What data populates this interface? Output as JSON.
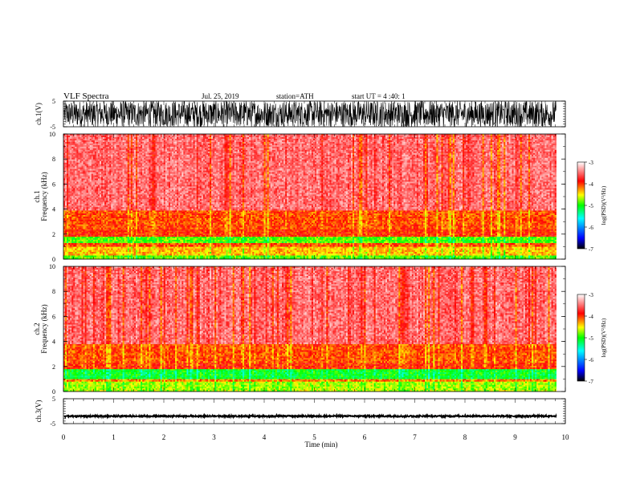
{
  "header": {
    "title": "VLF  Spectra",
    "date": "Jul.  25, 2019",
    "station": "station=ATH",
    "start": "start  UT  =   4  :40: 1"
  },
  "colorbar": {
    "label": "log(PSD)(V²/Hz)",
    "ticks": [
      "-3",
      "-4",
      "-5",
      "-6",
      "-7"
    ],
    "stops": [
      "#000000",
      "#0000ff",
      "#00ffff",
      "#00ff00",
      "#ffff00",
      "#ff0000",
      "#ffffff"
    ]
  },
  "chart_data": [
    {
      "type": "line",
      "name": "ch1-waveform",
      "ylabel": "ch.1(V)",
      "ylim": [
        -5,
        5
      ],
      "yticks": [
        "5",
        "-5"
      ],
      "xlim": [
        0,
        10
      ],
      "x_unit": "min",
      "data_end_min": 9.82,
      "description_values": {
        "amplitude_typical_V": 4.5,
        "mean_V": 0.0
      }
    },
    {
      "type": "heatmap",
      "name": "ch1-spectrogram",
      "ylabel": "ch.1\nFrequency  (kHz)",
      "ylabel_ch": "ch.1",
      "ylabel_freq": "Frequency  (kHz)",
      "ylim": [
        0,
        10
      ],
      "yticks": [
        "10",
        "8",
        "6",
        "4",
        "2",
        "0"
      ],
      "xlim": [
        0,
        10
      ],
      "x_unit": "min",
      "data_end_min": 9.82,
      "bands_kHz": [
        {
          "from": 0.0,
          "to": 0.3,
          "level": -4.8
        },
        {
          "from": 0.3,
          "to": 1.0,
          "level": -4.3
        },
        {
          "from": 1.0,
          "to": 1.3,
          "level": -4.0
        },
        {
          "from": 1.3,
          "to": 1.8,
          "level": -4.8
        },
        {
          "from": 1.8,
          "to": 2.4,
          "level": -3.9
        },
        {
          "from": 2.4,
          "to": 3.9,
          "level": -4.0
        },
        {
          "from": 3.9,
          "to": 10.0,
          "level": -3.4
        }
      ]
    },
    {
      "type": "heatmap",
      "name": "ch2-spectrogram",
      "ylabel": "ch.2\nFrequency  (kHz)",
      "ylabel_ch": "ch.2",
      "ylabel_freq": "Frequency  (kHz)",
      "ylim": [
        0,
        10
      ],
      "yticks": [
        "10",
        "8",
        "6",
        "4",
        "2",
        "0"
      ],
      "xlim": [
        0,
        10
      ],
      "x_unit": "min",
      "data_end_min": 9.82,
      "bands_kHz": [
        {
          "from": 0.0,
          "to": 0.8,
          "level": -4.6
        },
        {
          "from": 0.8,
          "to": 1.0,
          "level": -4.1
        },
        {
          "from": 1.0,
          "to": 1.8,
          "level": -5.0
        },
        {
          "from": 1.8,
          "to": 2.3,
          "level": -3.9
        },
        {
          "from": 2.3,
          "to": 3.8,
          "level": -4.0
        },
        {
          "from": 3.8,
          "to": 10.0,
          "level": -3.4
        }
      ]
    },
    {
      "type": "line",
      "name": "ch3-waveform",
      "ylabel": "ch.3(V)",
      "ylim": [
        -5,
        5
      ],
      "yticks": [
        "5",
        "-5"
      ],
      "xlim": [
        0,
        10
      ],
      "xticks": [
        "0",
        "1",
        "2",
        "3",
        "4",
        "5",
        "6",
        "7",
        "8",
        "9",
        "10"
      ],
      "xlabel": "Time  (min)",
      "x_unit": "min",
      "data_end_min": 9.82,
      "description_values": {
        "mean_V": -2.0,
        "amplitude_typical_V": 0.3
      }
    }
  ]
}
